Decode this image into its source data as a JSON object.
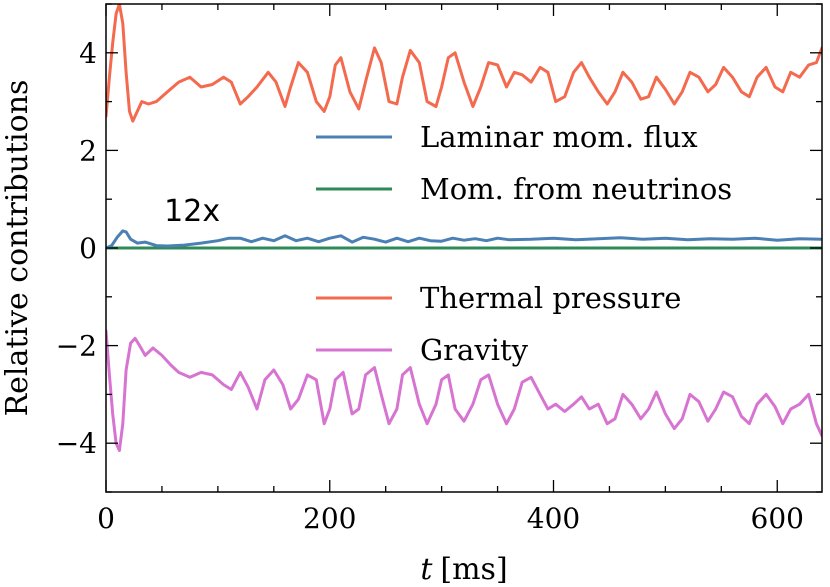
{
  "chart_data": {
    "type": "line",
    "title": "",
    "xlabel_italic": "t",
    "xlabel_unit": "[ms]",
    "ylabel": "Relative contributions",
    "xlim": [
      0,
      640
    ],
    "ylim": [
      -5,
      5
    ],
    "xticks": [
      0,
      200,
      400,
      600
    ],
    "yticks": [
      -4,
      -2,
      0,
      2,
      4
    ],
    "ytick_labels": [
      "−4",
      "−2",
      "0",
      "2",
      "4"
    ],
    "annotation": "12x",
    "annotation_at": [
      52,
      0.55
    ],
    "legend_upper": [
      "Laminar mom. flux",
      "Mom. from neutrinos"
    ],
    "legend_lower": [
      "Thermal pressure",
      "Gravity"
    ],
    "series": [
      {
        "name": "Laminar mom. flux",
        "color": "#4a80b4",
        "x": [
          0,
          5,
          10,
          15,
          18,
          22,
          28,
          35,
          45,
          55,
          70,
          85,
          100,
          110,
          120,
          130,
          140,
          150,
          160,
          170,
          180,
          190,
          200,
          210,
          220,
          230,
          240,
          250,
          260,
          270,
          280,
          290,
          300,
          310,
          320,
          330,
          340,
          350,
          360,
          380,
          400,
          420,
          440,
          460,
          480,
          500,
          520,
          540,
          560,
          580,
          600,
          620,
          640
        ],
        "values": [
          0.0,
          0.05,
          0.22,
          0.35,
          0.33,
          0.18,
          0.1,
          0.12,
          0.05,
          0.04,
          0.06,
          0.1,
          0.15,
          0.2,
          0.2,
          0.13,
          0.2,
          0.15,
          0.25,
          0.15,
          0.2,
          0.13,
          0.2,
          0.25,
          0.12,
          0.22,
          0.18,
          0.12,
          0.2,
          0.13,
          0.2,
          0.15,
          0.14,
          0.2,
          0.16,
          0.19,
          0.15,
          0.2,
          0.17,
          0.18,
          0.2,
          0.17,
          0.19,
          0.21,
          0.18,
          0.2,
          0.17,
          0.19,
          0.18,
          0.2,
          0.16,
          0.19,
          0.18
        ]
      },
      {
        "name": "Mom. from neutrinos",
        "color": "#2e8b57",
        "x": [
          0,
          640
        ],
        "values": [
          0.0,
          0.0
        ]
      },
      {
        "name": "Thermal pressure",
        "color": "#f46a4e",
        "x": [
          0,
          3,
          6,
          9,
          12,
          15,
          18,
          21,
          24,
          28,
          32,
          38,
          45,
          55,
          65,
          75,
          85,
          95,
          105,
          112,
          120,
          127,
          135,
          145,
          152,
          160,
          165,
          172,
          180,
          188,
          195,
          200,
          205,
          210,
          218,
          226,
          233,
          240,
          246,
          253,
          260,
          265,
          272,
          280,
          287,
          295,
          300,
          306,
          312,
          320,
          328,
          335,
          342,
          350,
          358,
          365,
          372,
          380,
          388,
          395,
          402,
          410,
          418,
          425,
          432,
          440,
          448,
          455,
          462,
          470,
          478,
          485,
          492,
          500,
          508,
          515,
          522,
          530,
          538,
          545,
          552,
          560,
          568,
          575,
          582,
          590,
          598,
          605,
          612,
          620,
          628,
          635,
          640
        ],
        "values": [
          2.7,
          3.5,
          4.2,
          4.8,
          5.0,
          4.6,
          3.6,
          2.8,
          2.6,
          2.8,
          3.0,
          2.95,
          3.0,
          3.2,
          3.4,
          3.5,
          3.3,
          3.35,
          3.5,
          3.4,
          2.95,
          3.1,
          3.3,
          3.6,
          3.4,
          2.9,
          3.3,
          3.8,
          3.6,
          3.0,
          2.8,
          3.1,
          3.75,
          3.9,
          3.2,
          2.85,
          3.5,
          4.1,
          3.8,
          3.0,
          2.95,
          3.5,
          4.05,
          3.8,
          3.0,
          2.9,
          3.3,
          3.9,
          4.0,
          3.4,
          2.9,
          3.3,
          3.8,
          3.75,
          3.3,
          3.6,
          3.55,
          3.4,
          3.7,
          3.6,
          3.0,
          3.1,
          3.6,
          3.8,
          3.5,
          3.2,
          2.95,
          3.2,
          3.6,
          3.4,
          3.05,
          3.1,
          3.5,
          3.25,
          2.95,
          3.2,
          3.6,
          3.5,
          3.2,
          3.35,
          3.7,
          3.5,
          3.2,
          3.1,
          3.5,
          3.7,
          3.3,
          3.2,
          3.6,
          3.5,
          3.75,
          3.8,
          4.1
        ]
      },
      {
        "name": "Gravity",
        "color": "#d774d2",
        "x": [
          0,
          3,
          6,
          9,
          12,
          15,
          18,
          22,
          26,
          30,
          35,
          42,
          50,
          58,
          65,
          75,
          85,
          95,
          105,
          112,
          120,
          127,
          135,
          142,
          150,
          158,
          165,
          172,
          180,
          188,
          195,
          200,
          205,
          212,
          220,
          226,
          232,
          240,
          246,
          253,
          260,
          265,
          272,
          280,
          287,
          295,
          300,
          306,
          312,
          320,
          328,
          335,
          342,
          350,
          358,
          365,
          372,
          380,
          388,
          395,
          402,
          410,
          418,
          425,
          432,
          440,
          448,
          455,
          462,
          470,
          478,
          485,
          492,
          500,
          508,
          515,
          522,
          530,
          538,
          545,
          552,
          560,
          568,
          575,
          582,
          590,
          598,
          605,
          612,
          620,
          628,
          635,
          640
        ],
        "values": [
          -1.7,
          -2.6,
          -3.4,
          -4.0,
          -4.15,
          -3.6,
          -2.5,
          -1.95,
          -1.85,
          -2.0,
          -2.2,
          -2.05,
          -2.2,
          -2.4,
          -2.55,
          -2.65,
          -2.55,
          -2.6,
          -2.8,
          -2.9,
          -2.55,
          -2.85,
          -3.3,
          -2.7,
          -2.5,
          -2.8,
          -3.3,
          -3.1,
          -2.6,
          -2.7,
          -3.6,
          -3.3,
          -2.7,
          -2.55,
          -3.4,
          -3.3,
          -2.6,
          -2.45,
          -3.0,
          -3.6,
          -3.3,
          -2.6,
          -2.45,
          -3.2,
          -3.6,
          -3.2,
          -2.7,
          -2.6,
          -3.3,
          -3.55,
          -3.2,
          -2.7,
          -2.6,
          -3.2,
          -3.6,
          -3.3,
          -2.75,
          -2.65,
          -3.0,
          -3.3,
          -3.2,
          -3.35,
          -3.2,
          -3.05,
          -3.3,
          -3.2,
          -3.6,
          -3.5,
          -3.0,
          -3.2,
          -3.5,
          -3.3,
          -2.95,
          -3.4,
          -3.7,
          -3.5,
          -3.0,
          -3.15,
          -3.55,
          -3.3,
          -2.95,
          -3.05,
          -3.45,
          -3.6,
          -3.2,
          -3.0,
          -3.25,
          -3.6,
          -3.3,
          -3.2,
          -3.0,
          -3.6,
          -3.85
        ]
      }
    ]
  }
}
